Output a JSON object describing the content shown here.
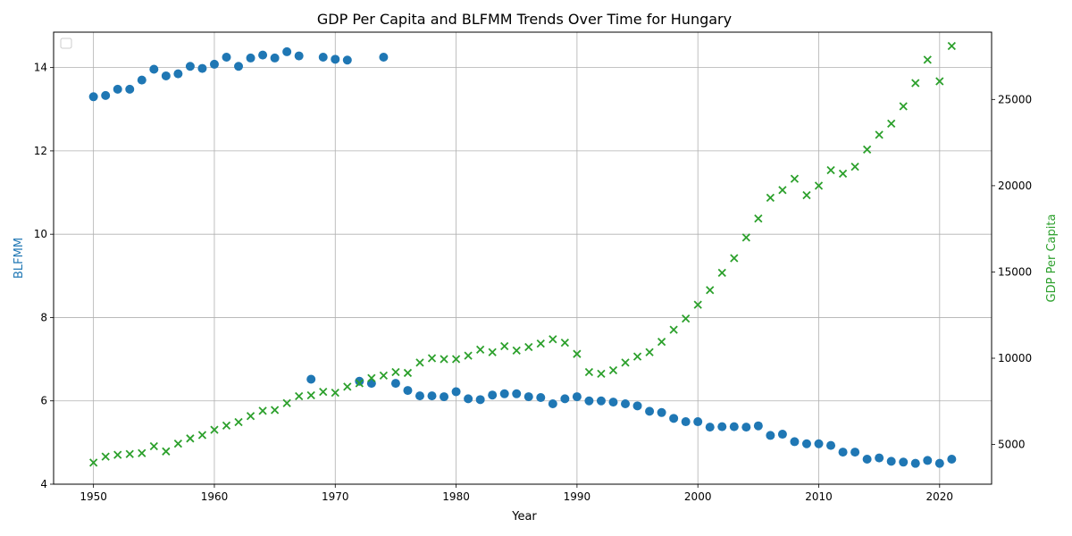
{
  "chart_data": {
    "type": "scatter",
    "title": "GDP Per Capita and BLFMM Trends Over Time for Hungary",
    "xlabel": "Year",
    "ylabel_left": "BLFMM",
    "ylabel_right": "GDP Per Capita",
    "xlim": [
      1946.7,
      2024.3
    ],
    "ylim_left": [
      4,
      14.85
    ],
    "ylim_right": [
      2700,
      28900
    ],
    "xticks": [
      1950,
      1960,
      1970,
      1980,
      1990,
      2000,
      2010,
      2020
    ],
    "yticks_left": [
      4,
      6,
      8,
      10,
      12,
      14
    ],
    "yticks_right": [
      5000,
      10000,
      15000,
      20000,
      25000
    ],
    "grid": true,
    "legend": "top-left (empty)",
    "colors": {
      "blfmm": "#1f77b4",
      "gdp": "#2ca02c"
    },
    "series": [
      {
        "name": "BLFMM",
        "axis": "left",
        "marker": "circle",
        "points": [
          [
            1950,
            13.3
          ],
          [
            1951,
            13.33
          ],
          [
            1952,
            13.48
          ],
          [
            1953,
            13.48
          ],
          [
            1954,
            13.7
          ],
          [
            1955,
            13.96
          ],
          [
            1956,
            13.8
          ],
          [
            1957,
            13.85
          ],
          [
            1958,
            14.03
          ],
          [
            1959,
            13.98
          ],
          [
            1960,
            14.08
          ],
          [
            1961,
            14.25
          ],
          [
            1962,
            14.03
          ],
          [
            1963,
            14.23
          ],
          [
            1964,
            14.3
          ],
          [
            1965,
            14.23
          ],
          [
            1966,
            14.38
          ],
          [
            1967,
            14.28
          ],
          [
            1968,
            6.52
          ],
          [
            1969,
            14.25
          ],
          [
            1970,
            14.2
          ],
          [
            1971,
            14.18
          ],
          [
            1972,
            6.47
          ],
          [
            1973,
            6.42
          ],
          [
            1974,
            14.25
          ],
          [
            1975,
            6.42
          ],
          [
            1976,
            6.25
          ],
          [
            1977,
            6.12
          ],
          [
            1978,
            6.12
          ],
          [
            1979,
            6.1
          ],
          [
            1980,
            6.22
          ],
          [
            1981,
            6.05
          ],
          [
            1982,
            6.03
          ],
          [
            1983,
            6.14
          ],
          [
            1984,
            6.17
          ],
          [
            1985,
            6.17
          ],
          [
            1986,
            6.1
          ],
          [
            1987,
            6.08
          ],
          [
            1988,
            5.93
          ],
          [
            1989,
            6.05
          ],
          [
            1990,
            6.1
          ],
          [
            1991,
            6.0
          ],
          [
            1992,
            6.0
          ],
          [
            1993,
            5.97
          ],
          [
            1994,
            5.93
          ],
          [
            1995,
            5.88
          ],
          [
            1996,
            5.75
          ],
          [
            1997,
            5.72
          ],
          [
            1998,
            5.58
          ],
          [
            1999,
            5.5
          ],
          [
            2000,
            5.5
          ],
          [
            2001,
            5.37
          ],
          [
            2002,
            5.38
          ],
          [
            2003,
            5.38
          ],
          [
            2004,
            5.37
          ],
          [
            2005,
            5.4
          ],
          [
            2006,
            5.17
          ],
          [
            2007,
            5.2
          ],
          [
            2008,
            5.02
          ],
          [
            2009,
            4.97
          ],
          [
            2010,
            4.97
          ],
          [
            2011,
            4.93
          ],
          [
            2012,
            4.77
          ],
          [
            2013,
            4.77
          ],
          [
            2014,
            4.6
          ],
          [
            2015,
            4.63
          ],
          [
            2016,
            4.55
          ],
          [
            2017,
            4.53
          ],
          [
            2018,
            4.5
          ],
          [
            2019,
            4.57
          ],
          [
            2020,
            4.5
          ],
          [
            2021,
            4.6
          ]
        ]
      },
      {
        "name": "GDP Per Capita",
        "axis": "right",
        "marker": "x",
        "points": [
          [
            1950,
            3950
          ],
          [
            1951,
            4300
          ],
          [
            1952,
            4400
          ],
          [
            1953,
            4450
          ],
          [
            1954,
            4500
          ],
          [
            1955,
            4900
          ],
          [
            1956,
            4600
          ],
          [
            1957,
            5050
          ],
          [
            1958,
            5350
          ],
          [
            1959,
            5550
          ],
          [
            1960,
            5850
          ],
          [
            1961,
            6100
          ],
          [
            1962,
            6300
          ],
          [
            1963,
            6650
          ],
          [
            1964,
            6950
          ],
          [
            1965,
            7000
          ],
          [
            1966,
            7400
          ],
          [
            1967,
            7800
          ],
          [
            1968,
            7850
          ],
          [
            1969,
            8050
          ],
          [
            1970,
            8000
          ],
          [
            1971,
            8350
          ],
          [
            1972,
            8550
          ],
          [
            1973,
            8850
          ],
          [
            1974,
            9000
          ],
          [
            1975,
            9200
          ],
          [
            1976,
            9150
          ],
          [
            1977,
            9750
          ],
          [
            1978,
            10000
          ],
          [
            1979,
            9950
          ],
          [
            1980,
            9950
          ],
          [
            1981,
            10150
          ],
          [
            1982,
            10500
          ],
          [
            1983,
            10350
          ],
          [
            1984,
            10700
          ],
          [
            1985,
            10450
          ],
          [
            1986,
            10650
          ],
          [
            1987,
            10850
          ],
          [
            1988,
            11100
          ],
          [
            1989,
            10900
          ],
          [
            1990,
            10250
          ],
          [
            1991,
            9200
          ],
          [
            1992,
            9100
          ],
          [
            1993,
            9300
          ],
          [
            1994,
            9750
          ],
          [
            1995,
            10100
          ],
          [
            1996,
            10350
          ],
          [
            1997,
            10950
          ],
          [
            1998,
            11650
          ],
          [
            1999,
            12300
          ],
          [
            2000,
            13100
          ],
          [
            2001,
            13950
          ],
          [
            2002,
            14950
          ],
          [
            2003,
            15800
          ],
          [
            2004,
            17000
          ],
          [
            2005,
            18100
          ],
          [
            2006,
            19300
          ],
          [
            2007,
            19750
          ],
          [
            2008,
            20400
          ],
          [
            2009,
            19450
          ],
          [
            2010,
            20000
          ],
          [
            2011,
            20900
          ],
          [
            2012,
            20700
          ],
          [
            2013,
            21100
          ],
          [
            2014,
            22100
          ],
          [
            2015,
            22950
          ],
          [
            2016,
            23600
          ],
          [
            2017,
            24600
          ],
          [
            2018,
            25950
          ],
          [
            2019,
            27300
          ],
          [
            2020,
            26050
          ],
          [
            2021,
            28100
          ]
        ]
      }
    ]
  }
}
